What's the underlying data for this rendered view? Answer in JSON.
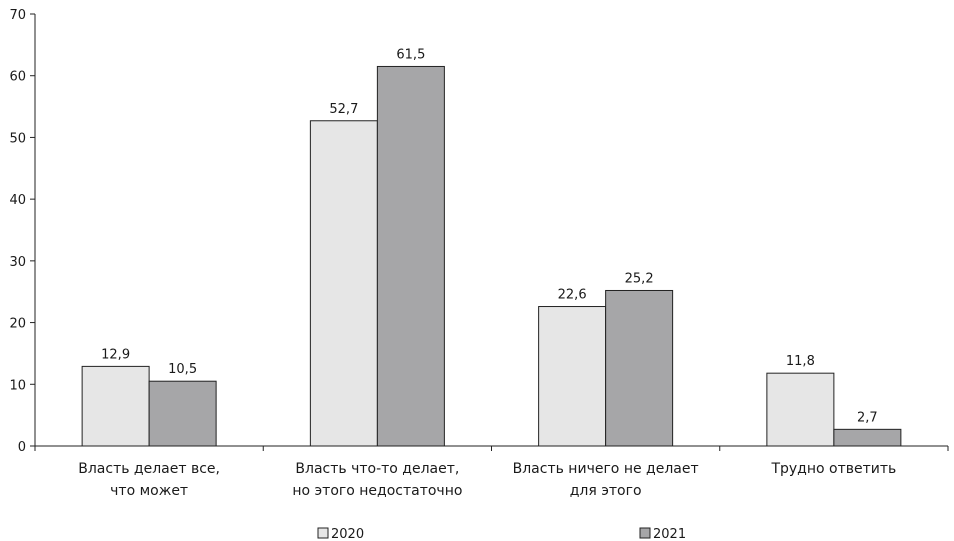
{
  "chart_data": {
    "type": "bar",
    "categories": [
      [
        "Власть делает все,",
        "что может"
      ],
      [
        "Власть что-то делает,",
        "но этого недостаточно"
      ],
      [
        "Власть ничего не делает",
        "для этого"
      ],
      [
        "Трудно ответить"
      ]
    ],
    "series": [
      {
        "name": "2020",
        "values": [
          12.9,
          52.7,
          22.6,
          11.8
        ],
        "labels": [
          "12,9",
          "52,7",
          "22,6",
          "11,8"
        ],
        "color": "#e6e6e6"
      },
      {
        "name": "2021",
        "values": [
          10.5,
          61.5,
          25.2,
          2.7
        ],
        "labels": [
          "10,5",
          "61,5",
          "25,2",
          "2,7"
        ],
        "color": "#a6a6a8"
      }
    ],
    "yticks": [
      0,
      10,
      20,
      30,
      40,
      50,
      60,
      70
    ],
    "ylim": [
      0,
      70
    ],
    "grid": false,
    "legend_position": "bottom"
  }
}
